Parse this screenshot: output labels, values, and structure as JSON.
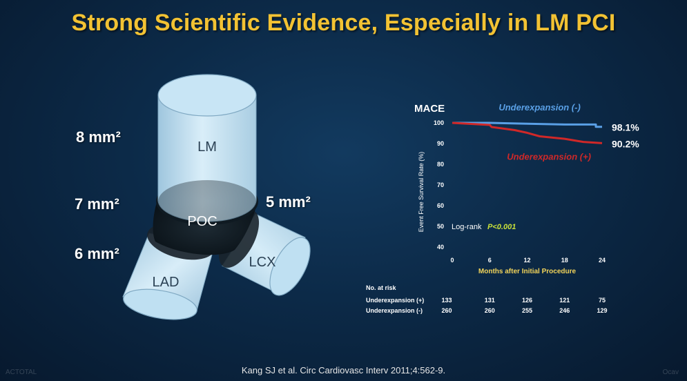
{
  "slide": {
    "title": "Strong Scientific Evidence, Especially in LM PCI",
    "citation": "Kang SJ et al. Circ Cardiovasc Interv  2011;4:562-9.",
    "watermark_left": "ACTOTAL",
    "watermark_right": "Ocav"
  },
  "vessel_diagram": {
    "segments": {
      "lm": "LM",
      "poc": "POC",
      "lad": "LAD",
      "lcx": "LCX"
    },
    "areas": {
      "lm": "8 mm²",
      "poc": "7 mm²",
      "lcx": "5 mm²",
      "lad": "6 mm²"
    },
    "colors": {
      "vessel": "#c5e4f4",
      "vessel_edge": "#7fa8c2",
      "ring": "#0f1a22"
    }
  },
  "chart_data": {
    "type": "line",
    "panel_label": "MACE",
    "ylabel": "Event Free Survival Rate (%)",
    "xlabel": "Months after Initial Procedure",
    "x_ticks": [
      0,
      6,
      12,
      18,
      24
    ],
    "y_ticks": [
      40,
      50,
      60,
      70,
      80,
      90,
      100
    ],
    "xlim": [
      0,
      24
    ],
    "ylim": [
      40,
      100
    ],
    "series": [
      {
        "name": "Underexpansion (-)",
        "color": "#5aa0e6",
        "end_label": "98.1%",
        "points": [
          [
            0,
            100
          ],
          [
            6,
            100
          ],
          [
            12,
            99.6
          ],
          [
            18,
            99.2
          ],
          [
            23,
            99.2
          ],
          [
            23,
            98.1
          ],
          [
            24,
            98.1
          ]
        ]
      },
      {
        "name": "Underexpansion (+)",
        "color": "#d02828",
        "end_label": "90.2%",
        "points": [
          [
            0,
            100
          ],
          [
            6,
            99
          ],
          [
            6.3,
            98
          ],
          [
            10,
            96.5
          ],
          [
            12,
            95.2
          ],
          [
            14,
            93.5
          ],
          [
            18,
            92.3
          ],
          [
            21,
            90.8
          ],
          [
            24,
            90.2
          ]
        ]
      }
    ],
    "annotation": {
      "label": "Log-rank",
      "value": "P<0.001",
      "x": 1,
      "y": 50
    },
    "risk_table": {
      "header": "No. at risk",
      "rows": [
        {
          "label": "Underexpansion (+)",
          "values": [
            "133",
            "131",
            "126",
            "121",
            "75"
          ]
        },
        {
          "label": "Underexpansion (-)",
          "values": [
            "260",
            "260",
            "255",
            "246",
            "129"
          ]
        }
      ]
    },
    "annotation_color": "#c8e03a",
    "xlabel_color": "#f2d45a"
  }
}
